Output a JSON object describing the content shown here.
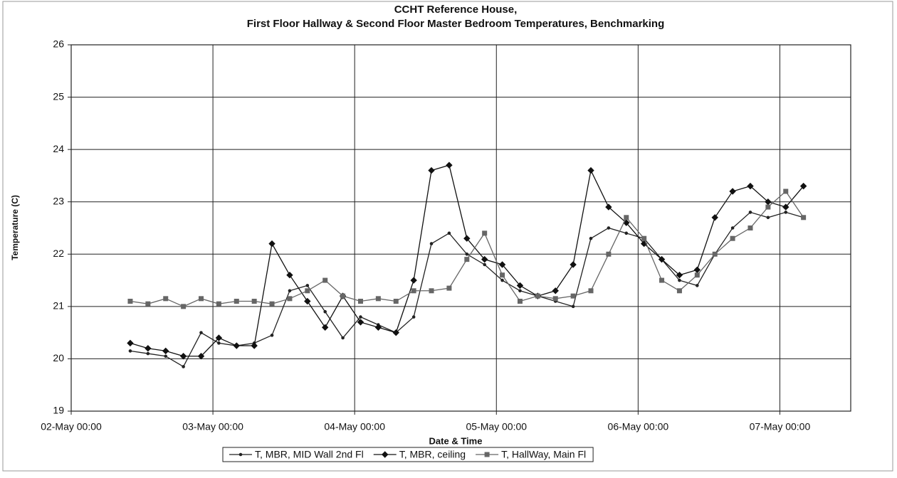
{
  "chart_data": {
    "type": "line",
    "title": [
      "CCHT Reference House,",
      "First Floor Hallway & Second Floor Master Bedroom Temperatures, Benchmarking"
    ],
    "xlabel": "Date & Time",
    "ylabel": "Temperature (C)",
    "x": [
      "02-May 10:00",
      "02-May 13:00",
      "02-May 16:00",
      "02-May 19:00",
      "02-May 22:00",
      "03-May 01:00",
      "03-May 04:00",
      "03-May 07:00",
      "03-May 10:00",
      "03-May 13:00",
      "03-May 16:00",
      "03-May 19:00",
      "03-May 22:00",
      "04-May 01:00",
      "04-May 04:00",
      "04-May 07:00",
      "04-May 10:00",
      "04-May 13:00",
      "04-May 16:00",
      "04-May 19:00",
      "04-May 22:00",
      "05-May 01:00",
      "05-May 04:00",
      "05-May 07:00",
      "05-May 10:00",
      "05-May 13:00",
      "05-May 16:00",
      "05-May 19:00",
      "05-May 22:00",
      "06-May 01:00",
      "06-May 04:00",
      "06-May 07:00",
      "06-May 10:00",
      "06-May 13:00",
      "06-May 16:00",
      "06-May 19:00",
      "06-May 22:00",
      "07-May 01:00",
      "07-May 04:00"
    ],
    "series": [
      {
        "name": "T, MBR, MID Wall 2nd Fl",
        "color": "#222222",
        "marker": "circle",
        "values": [
          20.15,
          20.1,
          20.05,
          19.85,
          20.5,
          20.3,
          20.25,
          20.3,
          20.45,
          21.3,
          21.4,
          20.9,
          20.4,
          20.8,
          20.65,
          20.5,
          20.8,
          22.2,
          22.4,
          22.0,
          21.8,
          21.5,
          21.3,
          21.2,
          21.1,
          21.0,
          22.3,
          22.5,
          22.4,
          22.3,
          21.9,
          21.5,
          21.4,
          22.0,
          22.5,
          22.8,
          22.7,
          22.8,
          22.7
        ]
      },
      {
        "name": "T, MBR, ceiling",
        "color": "#111111",
        "marker": "diamond",
        "values": [
          20.3,
          20.2,
          20.15,
          20.05,
          20.05,
          20.4,
          20.25,
          20.25,
          22.2,
          21.6,
          21.1,
          20.6,
          21.2,
          20.7,
          20.6,
          20.5,
          21.5,
          23.6,
          23.7,
          22.3,
          21.9,
          21.8,
          21.4,
          21.2,
          21.3,
          21.8,
          23.6,
          22.9,
          22.6,
          22.2,
          21.9,
          21.6,
          21.7,
          22.7,
          23.2,
          23.3,
          23.0,
          22.9,
          23.3
        ]
      },
      {
        "name": "T, HallWay, Main Fl",
        "color": "#666666",
        "marker": "square",
        "values": [
          21.1,
          21.05,
          21.15,
          21.0,
          21.15,
          21.05,
          21.1,
          21.1,
          21.05,
          21.15,
          21.3,
          21.5,
          21.2,
          21.1,
          21.15,
          21.1,
          21.3,
          21.3,
          21.35,
          21.9,
          22.4,
          21.6,
          21.1,
          21.2,
          21.15,
          21.2,
          21.3,
          22.0,
          22.7,
          22.3,
          21.5,
          21.3,
          21.6,
          22.0,
          22.3,
          22.5,
          22.9,
          23.2,
          22.7
        ]
      }
    ],
    "xlim": [
      "02-May 00:00",
      "07-May 12:00"
    ],
    "xticks": [
      "02-May 00:00",
      "03-May 00:00",
      "04-May 00:00",
      "05-May 00:00",
      "06-May 00:00",
      "07-May 00:00"
    ],
    "ylim": [
      19,
      26
    ],
    "yticks": [
      19,
      20,
      21,
      22,
      23,
      24,
      25,
      26
    ],
    "grid": true,
    "legend": "bottom"
  }
}
